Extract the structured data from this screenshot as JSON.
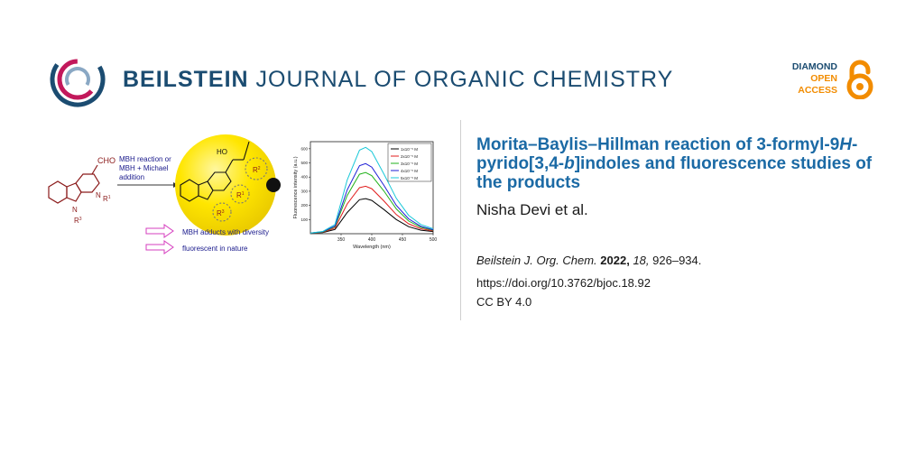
{
  "journal": {
    "name_bold": "BEILSTEIN",
    "name_light": "JOURNAL OF ORGANIC CHEMISTRY"
  },
  "badge": {
    "line1": "DIAMOND",
    "line2": "OPEN",
    "line3": "ACCESS",
    "icon": "open-lock-icon"
  },
  "article": {
    "title_1": "Morita–Baylis–Hillman reaction of 3-formyl-9",
    "title_H": "H",
    "title_2": "-pyrido[3,4-",
    "title_b": "b",
    "title_3": "]indoles and fluorescence studies of the products",
    "authors": "Nisha Devi et al.",
    "journal_abbr": "Beilstein J. Org. Chem.",
    "year": "2022,",
    "volume": "18,",
    "pages": "926–934.",
    "doi": "https://doi.org/10.3762/bjoc.18.92",
    "license": "CC BY 4.0"
  },
  "graphic": {
    "cho_label": "CHO",
    "reaction_line1": "MBH reaction or",
    "reaction_line2": "MBH + Michael",
    "reaction_line3": "addition",
    "r1": "R",
    "r1_sup": "1",
    "r3": "R",
    "r3_sup": "3",
    "r2": "R",
    "r2_sup": "2",
    "ho": "HO",
    "n_label": "N",
    "note1": "MBH adducts with diversity",
    "note2": "fluorescent in nature",
    "ylabel": "Fluorescence intensity (a.u.)",
    "xlabel": "Wavelength (nm)",
    "colors": {
      "molecule": "#8b1a1a",
      "blue_text": "#1a1a8c",
      "sphere": "#ffe600",
      "arrow_outline": "#d63fbf"
    }
  },
  "chart_data": {
    "type": "line",
    "xlabel": "Wavelength (nm)",
    "ylabel": "Fluorescence intensity (a.u.)",
    "x": [
      300,
      320,
      340,
      360,
      380,
      390,
      400,
      420,
      440,
      460,
      480,
      500
    ],
    "xlim": [
      300,
      500
    ],
    "ylim": [
      0,
      650
    ],
    "xticks": [
      "350",
      "400",
      "450",
      "500"
    ],
    "yticks": [
      "100",
      "200",
      "300",
      "400",
      "500",
      "600"
    ],
    "series": [
      {
        "name": "1x10⁻⁵ M",
        "color": "#000000",
        "values": [
          5,
          8,
          30,
          150,
          240,
          248,
          235,
          170,
          100,
          50,
          25,
          15
        ]
      },
      {
        "name": "2x10⁻⁵ M",
        "color": "#e11d1d",
        "values": [
          5,
          10,
          40,
          210,
          325,
          335,
          318,
          230,
          135,
          70,
          35,
          20
        ]
      },
      {
        "name": "3x10⁻⁵ M",
        "color": "#22b21c",
        "values": [
          5,
          12,
          50,
          270,
          420,
          432,
          410,
          300,
          175,
          90,
          45,
          25
        ]
      },
      {
        "name": "4x10⁻⁵ M",
        "color": "#1d1dd6",
        "values": [
          5,
          14,
          55,
          310,
          480,
          495,
          470,
          340,
          200,
          105,
          52,
          28
        ]
      },
      {
        "name": "5x10⁻⁵ M",
        "color": "#19c8d8",
        "values": [
          5,
          16,
          65,
          380,
          590,
          610,
          580,
          420,
          250,
          130,
          65,
          35
        ]
      }
    ]
  }
}
